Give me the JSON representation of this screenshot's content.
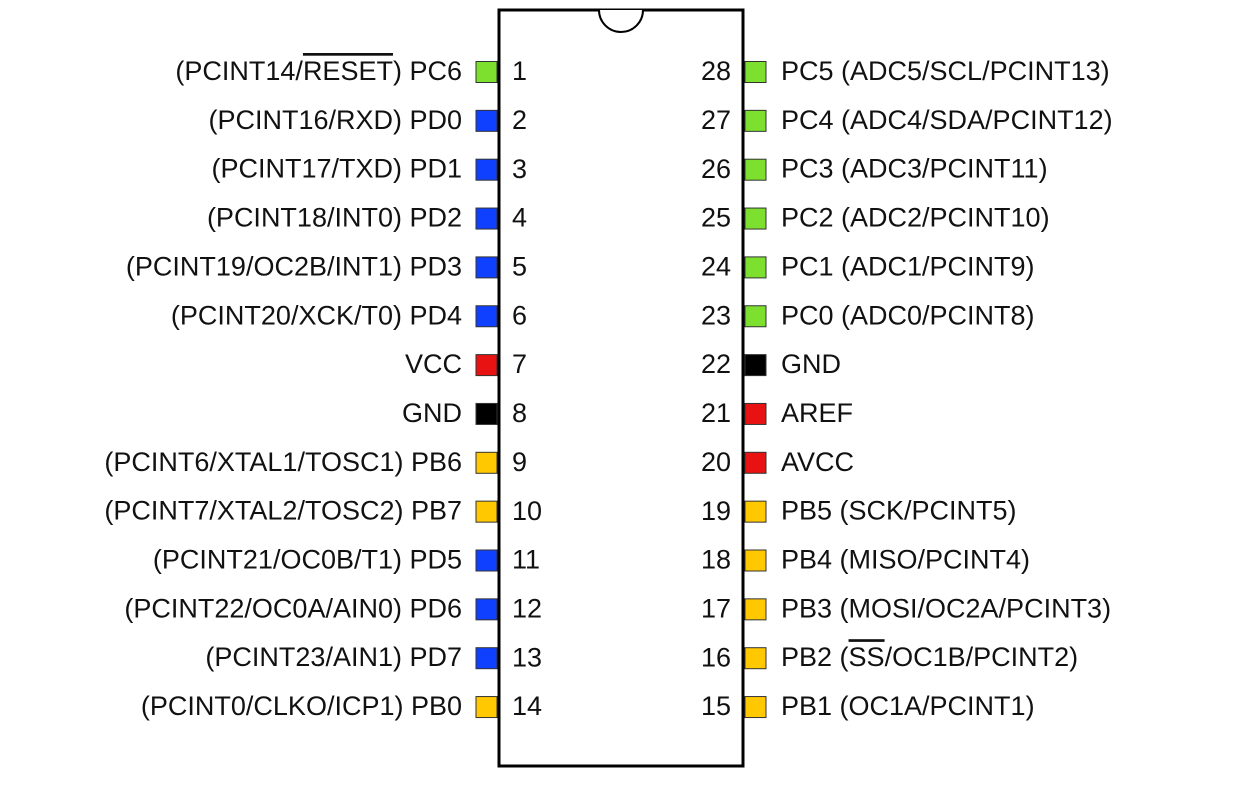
{
  "left_pins": [
    {
      "number": "1",
      "label": [
        {
          "text": "(PCINT14/"
        },
        {
          "text": "RESET",
          "overline": true
        },
        {
          "text": ") PC6"
        }
      ],
      "color": "#7ee02e"
    },
    {
      "number": "2",
      "label": [
        {
          "text": "(PCINT16/RXD) PD0"
        }
      ],
      "color": "#1040ff"
    },
    {
      "number": "3",
      "label": [
        {
          "text": "(PCINT17/TXD) PD1"
        }
      ],
      "color": "#1040ff"
    },
    {
      "number": "4",
      "label": [
        {
          "text": "(PCINT18/INT0) PD2"
        }
      ],
      "color": "#1040ff"
    },
    {
      "number": "5",
      "label": [
        {
          "text": "(PCINT19/OC2B/INT1) PD3"
        }
      ],
      "color": "#1040ff"
    },
    {
      "number": "6",
      "label": [
        {
          "text": "(PCINT20/XCK/T0) PD4"
        }
      ],
      "color": "#1040ff"
    },
    {
      "number": "7",
      "label": [
        {
          "text": "VCC"
        }
      ],
      "color": "#e81212"
    },
    {
      "number": "8",
      "label": [
        {
          "text": "GND"
        }
      ],
      "color": "#000000"
    },
    {
      "number": "9",
      "label": [
        {
          "text": "(PCINT6/XTAL1/TOSC1) PB6"
        }
      ],
      "color": "#ffc800"
    },
    {
      "number": "10",
      "label": [
        {
          "text": "(PCINT7/XTAL2/TOSC2) PB7"
        }
      ],
      "color": "#ffc800"
    },
    {
      "number": "11",
      "label": [
        {
          "text": "(PCINT21/OC0B/T1) PD5"
        }
      ],
      "color": "#1040ff"
    },
    {
      "number": "12",
      "label": [
        {
          "text": "(PCINT22/OC0A/AIN0) PD6"
        }
      ],
      "color": "#1040ff"
    },
    {
      "number": "13",
      "label": [
        {
          "text": "(PCINT23/AIN1) PD7"
        }
      ],
      "color": "#1040ff"
    },
    {
      "number": "14",
      "label": [
        {
          "text": "(PCINT0/CLKO/ICP1) PB0"
        }
      ],
      "color": "#ffc800"
    }
  ],
  "right_pins": [
    {
      "number": "28",
      "label": [
        {
          "text": "PC5 (ADC5/SCL/PCINT13)"
        }
      ],
      "color": "#7ee02e"
    },
    {
      "number": "27",
      "label": [
        {
          "text": "PC4 (ADC4/SDA/PCINT12)"
        }
      ],
      "color": "#7ee02e"
    },
    {
      "number": "26",
      "label": [
        {
          "text": "PC3 (ADC3/PCINT11)"
        }
      ],
      "color": "#7ee02e"
    },
    {
      "number": "25",
      "label": [
        {
          "text": "PC2 (ADC2/PCINT10)"
        }
      ],
      "color": "#7ee02e"
    },
    {
      "number": "24",
      "label": [
        {
          "text": "PC1 (ADC1/PCINT9)"
        }
      ],
      "color": "#7ee02e"
    },
    {
      "number": "23",
      "label": [
        {
          "text": "PC0 (ADC0/PCINT8)"
        }
      ],
      "color": "#7ee02e"
    },
    {
      "number": "22",
      "label": [
        {
          "text": "GND"
        }
      ],
      "color": "#000000"
    },
    {
      "number": "21",
      "label": [
        {
          "text": "AREF"
        }
      ],
      "color": "#e81212"
    },
    {
      "number": "20",
      "label": [
        {
          "text": "AVCC"
        }
      ],
      "color": "#e81212"
    },
    {
      "number": "19",
      "label": [
        {
          "text": "PB5 (SCK/PCINT5)"
        }
      ],
      "color": "#ffc800"
    },
    {
      "number": "18",
      "label": [
        {
          "text": "PB4 (MISO/PCINT4)"
        }
      ],
      "color": "#ffc800"
    },
    {
      "number": "17",
      "label": [
        {
          "text": "PB3 (MOSI/OC2A/PCINT3)"
        }
      ],
      "color": "#ffc800"
    },
    {
      "number": "16",
      "label": [
        {
          "text": "PB2 ("
        },
        {
          "text": "SS",
          "overline": true
        },
        {
          "text": "/OC1B/PCINT2)"
        }
      ],
      "color": "#ffc800"
    },
    {
      "number": "15",
      "label": [
        {
          "text": "PB1 (OC1A/PCINT1)"
        }
      ],
      "color": "#ffc800"
    }
  ]
}
